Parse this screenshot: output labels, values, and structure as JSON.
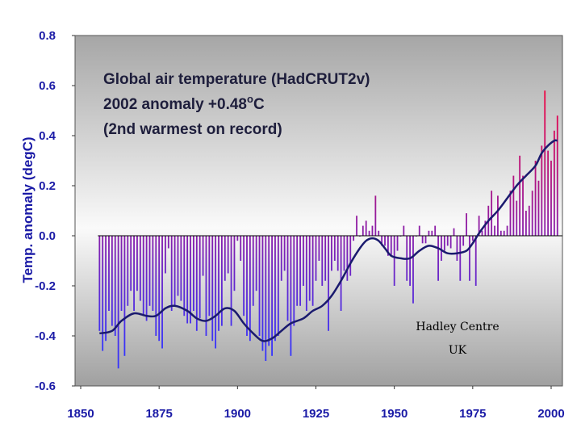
{
  "chart_data": {
    "type": "bar",
    "title_lines": [
      "Global air temperature (HadCRUT2v)",
      "2002 anomaly +0.48",
      "(2nd warmest on record)"
    ],
    "title_degree": "o",
    "title_unit": "C",
    "ylabel": "Temp. anomaly (degC)",
    "xlabel": "",
    "credit_lines": [
      "Hadley Centre",
      "UK"
    ],
    "xlim": [
      1850,
      2004
    ],
    "ylim": [
      -0.6,
      0.8
    ],
    "xticks": [
      "1850",
      "1875",
      "1900",
      "1925",
      "1950",
      "1975",
      "2000"
    ],
    "yticks": [
      "0.8",
      "0.6",
      "0.4",
      "0.2",
      "0.0",
      "-0.2",
      "-0.4",
      "-0.6"
    ],
    "grid": false,
    "series": [
      {
        "kind": "bars",
        "years": [
          1856,
          1857,
          1858,
          1859,
          1860,
          1861,
          1862,
          1863,
          1864,
          1865,
          1866,
          1867,
          1868,
          1869,
          1870,
          1871,
          1872,
          1873,
          1874,
          1875,
          1876,
          1877,
          1878,
          1879,
          1880,
          1881,
          1882,
          1883,
          1884,
          1885,
          1886,
          1887,
          1888,
          1889,
          1890,
          1891,
          1892,
          1893,
          1894,
          1895,
          1896,
          1897,
          1898,
          1899,
          1900,
          1901,
          1902,
          1903,
          1904,
          1905,
          1906,
          1907,
          1908,
          1909,
          1910,
          1911,
          1912,
          1913,
          1914,
          1915,
          1916,
          1917,
          1918,
          1919,
          1920,
          1921,
          1922,
          1923,
          1924,
          1925,
          1926,
          1927,
          1928,
          1929,
          1930,
          1931,
          1932,
          1933,
          1934,
          1935,
          1936,
          1937,
          1938,
          1939,
          1940,
          1941,
          1942,
          1943,
          1944,
          1945,
          1946,
          1947,
          1948,
          1949,
          1950,
          1951,
          1952,
          1953,
          1954,
          1955,
          1956,
          1957,
          1958,
          1959,
          1960,
          1961,
          1962,
          1963,
          1964,
          1965,
          1966,
          1967,
          1968,
          1969,
          1970,
          1971,
          1972,
          1973,
          1974,
          1975,
          1976,
          1977,
          1978,
          1979,
          1980,
          1981,
          1982,
          1983,
          1984,
          1985,
          1986,
          1987,
          1988,
          1989,
          1990,
          1991,
          1992,
          1993,
          1994,
          1995,
          1996,
          1997,
          1998,
          1999,
          2000,
          2001,
          2002
        ],
        "values": [
          -0.38,
          -0.46,
          -0.42,
          -0.3,
          -0.36,
          -0.4,
          -0.53,
          -0.3,
          -0.48,
          -0.28,
          -0.22,
          -0.3,
          -0.22,
          -0.26,
          -0.32,
          -0.34,
          -0.28,
          -0.3,
          -0.4,
          -0.42,
          -0.45,
          -0.15,
          -0.05,
          -0.3,
          -0.28,
          -0.24,
          -0.26,
          -0.32,
          -0.35,
          -0.35,
          -0.3,
          -0.38,
          -0.33,
          -0.16,
          -0.4,
          -0.32,
          -0.42,
          -0.45,
          -0.38,
          -0.36,
          -0.18,
          -0.15,
          -0.36,
          -0.22,
          -0.02,
          -0.1,
          -0.32,
          -0.4,
          -0.42,
          -0.28,
          -0.22,
          -0.4,
          -0.46,
          -0.5,
          -0.44,
          -0.48,
          -0.42,
          -0.4,
          -0.18,
          -0.14,
          -0.34,
          -0.48,
          -0.36,
          -0.28,
          -0.28,
          -0.2,
          -0.3,
          -0.26,
          -0.28,
          -0.18,
          -0.1,
          -0.2,
          -0.18,
          -0.38,
          -0.14,
          -0.1,
          -0.14,
          -0.3,
          -0.14,
          -0.18,
          -0.16,
          -0.02,
          0.08,
          0.0,
          0.04,
          0.06,
          0.02,
          0.04,
          0.16,
          0.02,
          -0.04,
          -0.04,
          -0.08,
          -0.08,
          -0.2,
          -0.06,
          0.0,
          0.04,
          -0.18,
          -0.2,
          -0.27,
          0.0,
          0.04,
          -0.03,
          -0.03,
          0.02,
          0.02,
          0.04,
          -0.18,
          -0.1,
          -0.06,
          -0.04,
          -0.05,
          0.03,
          -0.1,
          -0.18,
          -0.04,
          0.09,
          -0.18,
          -0.02,
          -0.2,
          0.08,
          0.02,
          0.06,
          0.12,
          0.18,
          0.04,
          0.16,
          0.02,
          0.02,
          0.04,
          0.18,
          0.24,
          0.14,
          0.32,
          0.24,
          0.1,
          0.12,
          0.18,
          0.3,
          0.22,
          0.36,
          0.58,
          0.34,
          0.3,
          0.42,
          0.48
        ]
      },
      {
        "kind": "smoothed-line",
        "points": [
          [
            1856,
            -0.39
          ],
          [
            1860,
            -0.38
          ],
          [
            1863,
            -0.34
          ],
          [
            1867,
            -0.31
          ],
          [
            1871,
            -0.32
          ],
          [
            1874,
            -0.32
          ],
          [
            1877,
            -0.29
          ],
          [
            1880,
            -0.28
          ],
          [
            1884,
            -0.3
          ],
          [
            1887,
            -0.33
          ],
          [
            1890,
            -0.34
          ],
          [
            1893,
            -0.32
          ],
          [
            1896,
            -0.29
          ],
          [
            1899,
            -0.3
          ],
          [
            1902,
            -0.35
          ],
          [
            1905,
            -0.39
          ],
          [
            1908,
            -0.42
          ],
          [
            1911,
            -0.41
          ],
          [
            1914,
            -0.38
          ],
          [
            1917,
            -0.35
          ],
          [
            1921,
            -0.33
          ],
          [
            1924,
            -0.3
          ],
          [
            1927,
            -0.28
          ],
          [
            1930,
            -0.24
          ],
          [
            1933,
            -0.18
          ],
          [
            1936,
            -0.11
          ],
          [
            1939,
            -0.05
          ],
          [
            1941,
            -0.02
          ],
          [
            1943,
            -0.01
          ],
          [
            1945,
            -0.02
          ],
          [
            1947,
            -0.05
          ],
          [
            1949,
            -0.08
          ],
          [
            1952,
            -0.09
          ],
          [
            1955,
            -0.09
          ],
          [
            1958,
            -0.06
          ],
          [
            1961,
            -0.04
          ],
          [
            1964,
            -0.05
          ],
          [
            1967,
            -0.07
          ],
          [
            1970,
            -0.07
          ],
          [
            1973,
            -0.06
          ],
          [
            1975,
            -0.03
          ],
          [
            1977,
            0.01
          ],
          [
            1980,
            0.06
          ],
          [
            1983,
            0.1
          ],
          [
            1986,
            0.15
          ],
          [
            1989,
            0.2
          ],
          [
            1992,
            0.24
          ],
          [
            1995,
            0.28
          ],
          [
            1997,
            0.33
          ],
          [
            1999,
            0.36
          ],
          [
            2001,
            0.38
          ],
          [
            2002,
            0.38
          ]
        ]
      }
    ],
    "colors": {
      "bar_top": "#ff0033",
      "bar_bottom": "#3333ff",
      "line": "#1a1a6e",
      "axis_text": "#1a1aa6"
    }
  }
}
